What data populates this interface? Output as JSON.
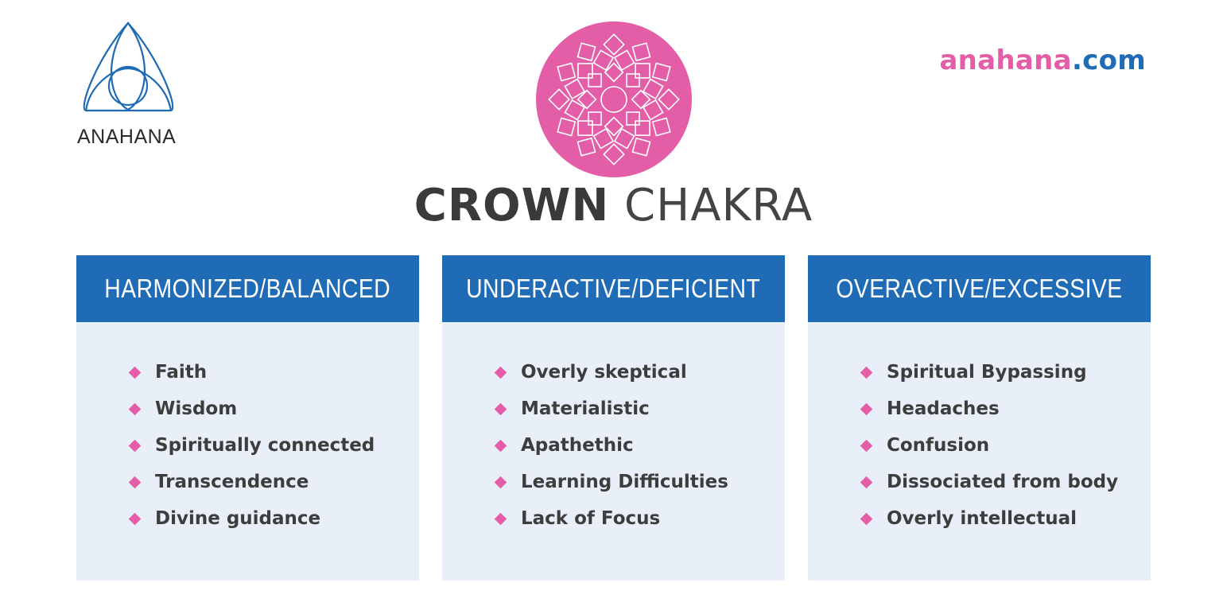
{
  "brand": {
    "logo_text": "ANAHANA",
    "site_name": "anahana",
    "site_tld": ".com",
    "logo_color": "#1f6bb5",
    "pink": "#e35ea7"
  },
  "title": {
    "bold": "CROWN",
    "light": "CHAKRA"
  },
  "colors": {
    "header_bg": "#1f6bb5",
    "panel_bg": "#e9eff8",
    "bullet": "#e35ea7",
    "symbol_bg": "#e35ea7"
  },
  "columns": [
    {
      "heading": "HARMONIZED/BALANCED",
      "items": [
        "Faith",
        "Wisdom",
        "Spiritually connected",
        "Transcendence",
        "Divine guidance"
      ]
    },
    {
      "heading": "UNDERACTIVE/DEFICIENT",
      "items": [
        "Overly skeptical",
        "Materialistic",
        "Apathethic",
        "Learning Difficulties",
        "Lack of Focus"
      ]
    },
    {
      "heading": "OVERACTIVE/EXCESSIVE",
      "items": [
        "Spiritual Bypassing",
        "Headaches",
        "Confusion",
        "Dissociated from body",
        "Overly intellectual"
      ]
    }
  ]
}
